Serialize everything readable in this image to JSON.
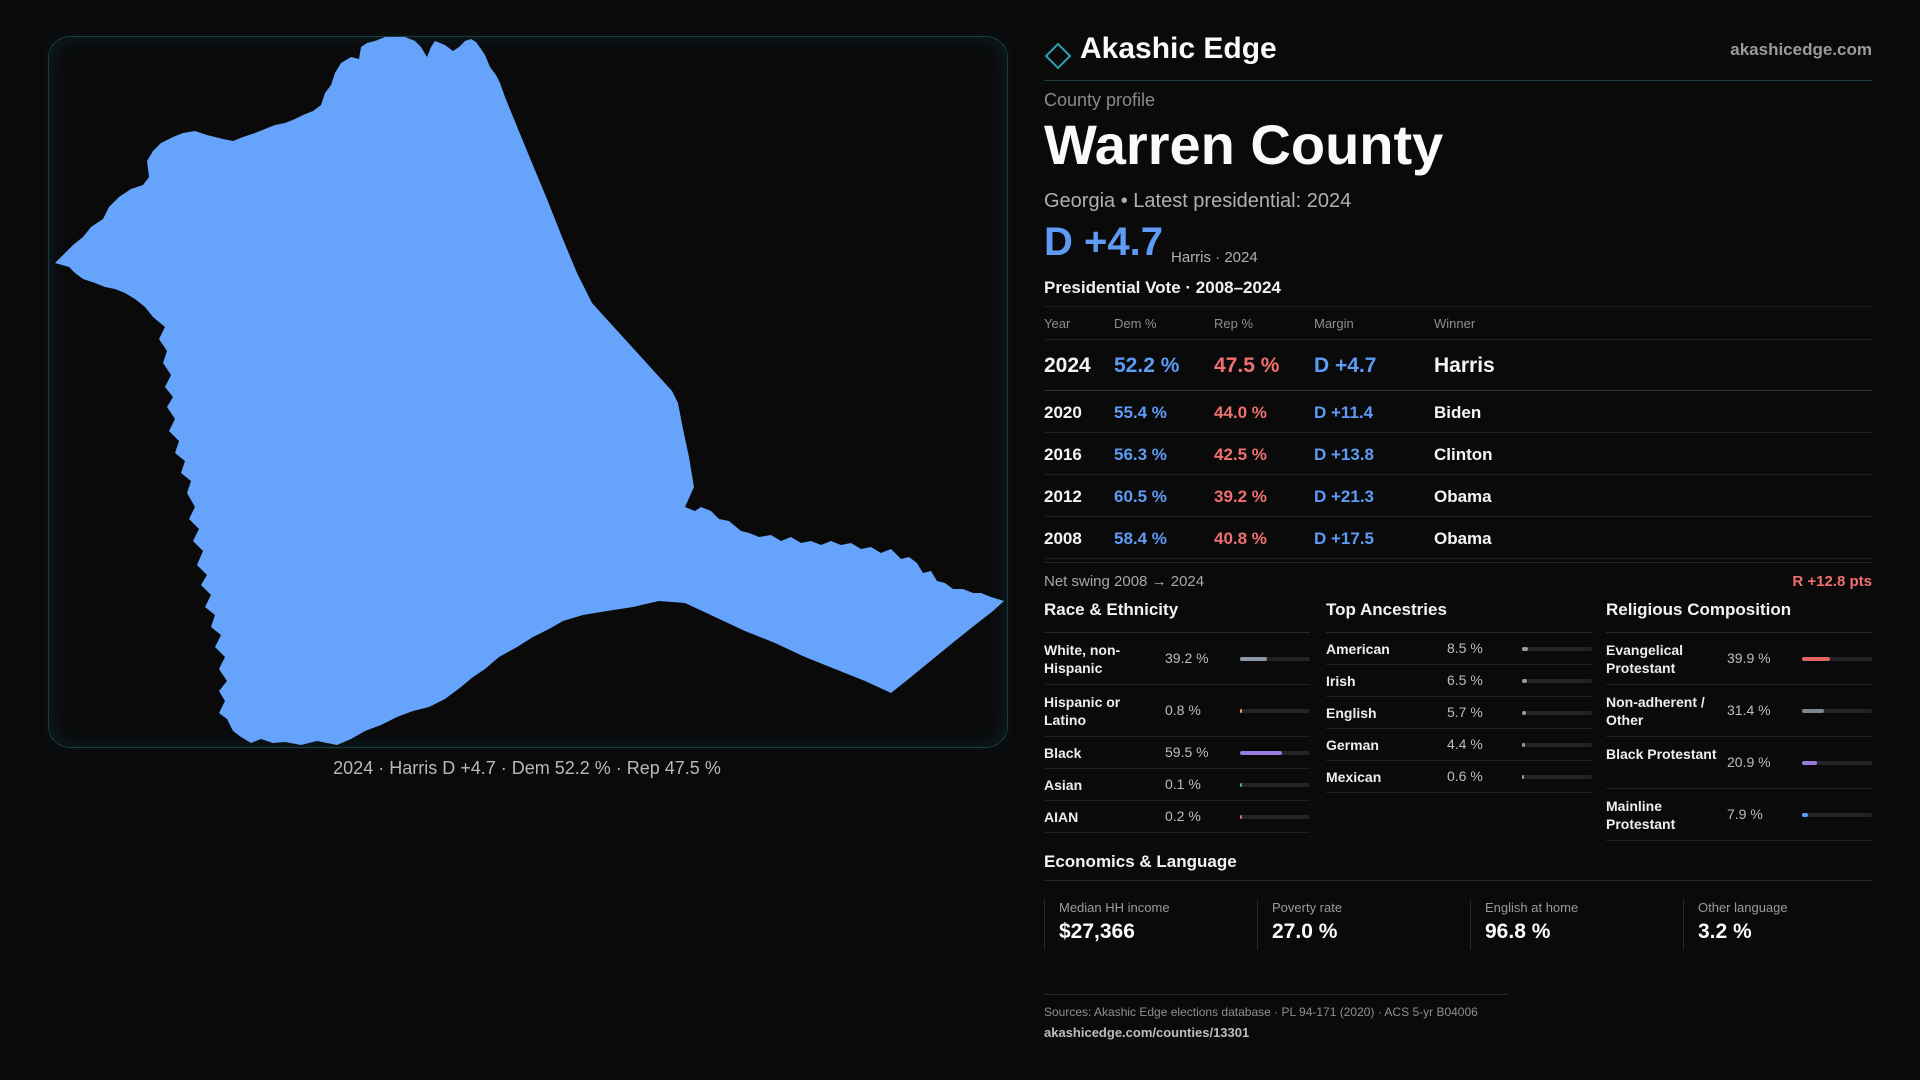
{
  "map": {
    "caption": "2024 · Harris D +4.7 · Dem 52.2 % · Rep 47.5 %",
    "fill_color": "#66a3fa"
  },
  "brand": {
    "name": "Akashic Edge",
    "url": "akashicedge.com",
    "logo_icon": "diamond-icon"
  },
  "profile": {
    "kicker": "County profile",
    "county": "Warren County",
    "subtitle": "Georgia • Latest presidential: 2024",
    "margin": "D +4.7",
    "margin_note": "Harris · 2024"
  },
  "presidential": {
    "heading": "Presidential Vote · 2008–2024",
    "columns": [
      "Year",
      "Dem %",
      "Rep %",
      "Margin",
      "Winner"
    ],
    "rows": [
      {
        "year": "2024",
        "dem": "52.2 %",
        "rep": "47.5 %",
        "margin": "D +4.7",
        "winner": "Harris"
      },
      {
        "year": "2020",
        "dem": "55.4 %",
        "rep": "44.0 %",
        "margin": "D +11.4",
        "winner": "Biden"
      },
      {
        "year": "2016",
        "dem": "56.3 %",
        "rep": "42.5 %",
        "margin": "D +13.8",
        "winner": "Clinton"
      },
      {
        "year": "2012",
        "dem": "60.5 %",
        "rep": "39.2 %",
        "margin": "D +21.3",
        "winner": "Obama"
      },
      {
        "year": "2008",
        "dem": "58.4 %",
        "rep": "40.8 %",
        "margin": "D +17.5",
        "winner": "Obama"
      }
    ],
    "swing_label": "Net swing 2008 → 2024",
    "swing_value": "R +12.8 pts"
  },
  "race": {
    "heading": "Race & Ethnicity",
    "items": [
      {
        "label": "White, non-Hispanic",
        "value": "39.2 %",
        "share": 0.392,
        "color": "#8d97a5"
      },
      {
        "label": "Hispanic or Latino",
        "value": "0.8 %",
        "share": 0.008,
        "color": "#e6a04a"
      },
      {
        "label": "Black",
        "value": "59.5 %",
        "share": 0.595,
        "color": "#9a7be0"
      },
      {
        "label": "Asian",
        "value": "0.1 %",
        "share": 0.001,
        "color": "#4fb0a0"
      },
      {
        "label": "AIAN",
        "value": "0.2 %",
        "share": 0.002,
        "color": "#d07b6a"
      }
    ]
  },
  "ancestry": {
    "heading": "Top Ancestries",
    "items": [
      {
        "label": "American",
        "value": "8.5 %",
        "share": 0.085,
        "color": "#9a9a9a"
      },
      {
        "label": "Irish",
        "value": "6.5 %",
        "share": 0.065,
        "color": "#9a9a9a"
      },
      {
        "label": "English",
        "value": "5.7 %",
        "share": 0.057,
        "color": "#9a9a9a"
      },
      {
        "label": "German",
        "value": "4.4 %",
        "share": 0.044,
        "color": "#9a9a9a"
      },
      {
        "label": "Mexican",
        "value": "0.6 %",
        "share": 0.006,
        "color": "#9a9a9a"
      }
    ]
  },
  "religion": {
    "heading": "Religious Composition",
    "items": [
      {
        "label": "Evangelical Protestant",
        "value": "39.9 %",
        "share": 0.399,
        "color": "#e26464"
      },
      {
        "label": "Non-adherent / Other",
        "value": "31.4 %",
        "share": 0.314,
        "color": "#7d8590"
      },
      {
        "label": "Black Protestant",
        "value": "20.9 %",
        "share": 0.209,
        "color": "#9a7be0"
      },
      {
        "label": "Mainline Protestant",
        "value": "7.9 %",
        "share": 0.079,
        "color": "#5e9bf5"
      }
    ]
  },
  "economics": {
    "heading": "Economics & Language",
    "items": [
      {
        "label": "Median HH income",
        "value": "$27,366"
      },
      {
        "label": "Poverty rate",
        "value": "27.0 %"
      },
      {
        "label": "English at home",
        "value": "96.8 %"
      },
      {
        "label": "Other language",
        "value": "3.2 %"
      }
    ]
  },
  "sources": {
    "line": "Sources: Akashic Edge elections database · PL 94-171 (2020) · ACS 5-yr B04006",
    "link": "akashicedge.com/counties/13301"
  }
}
